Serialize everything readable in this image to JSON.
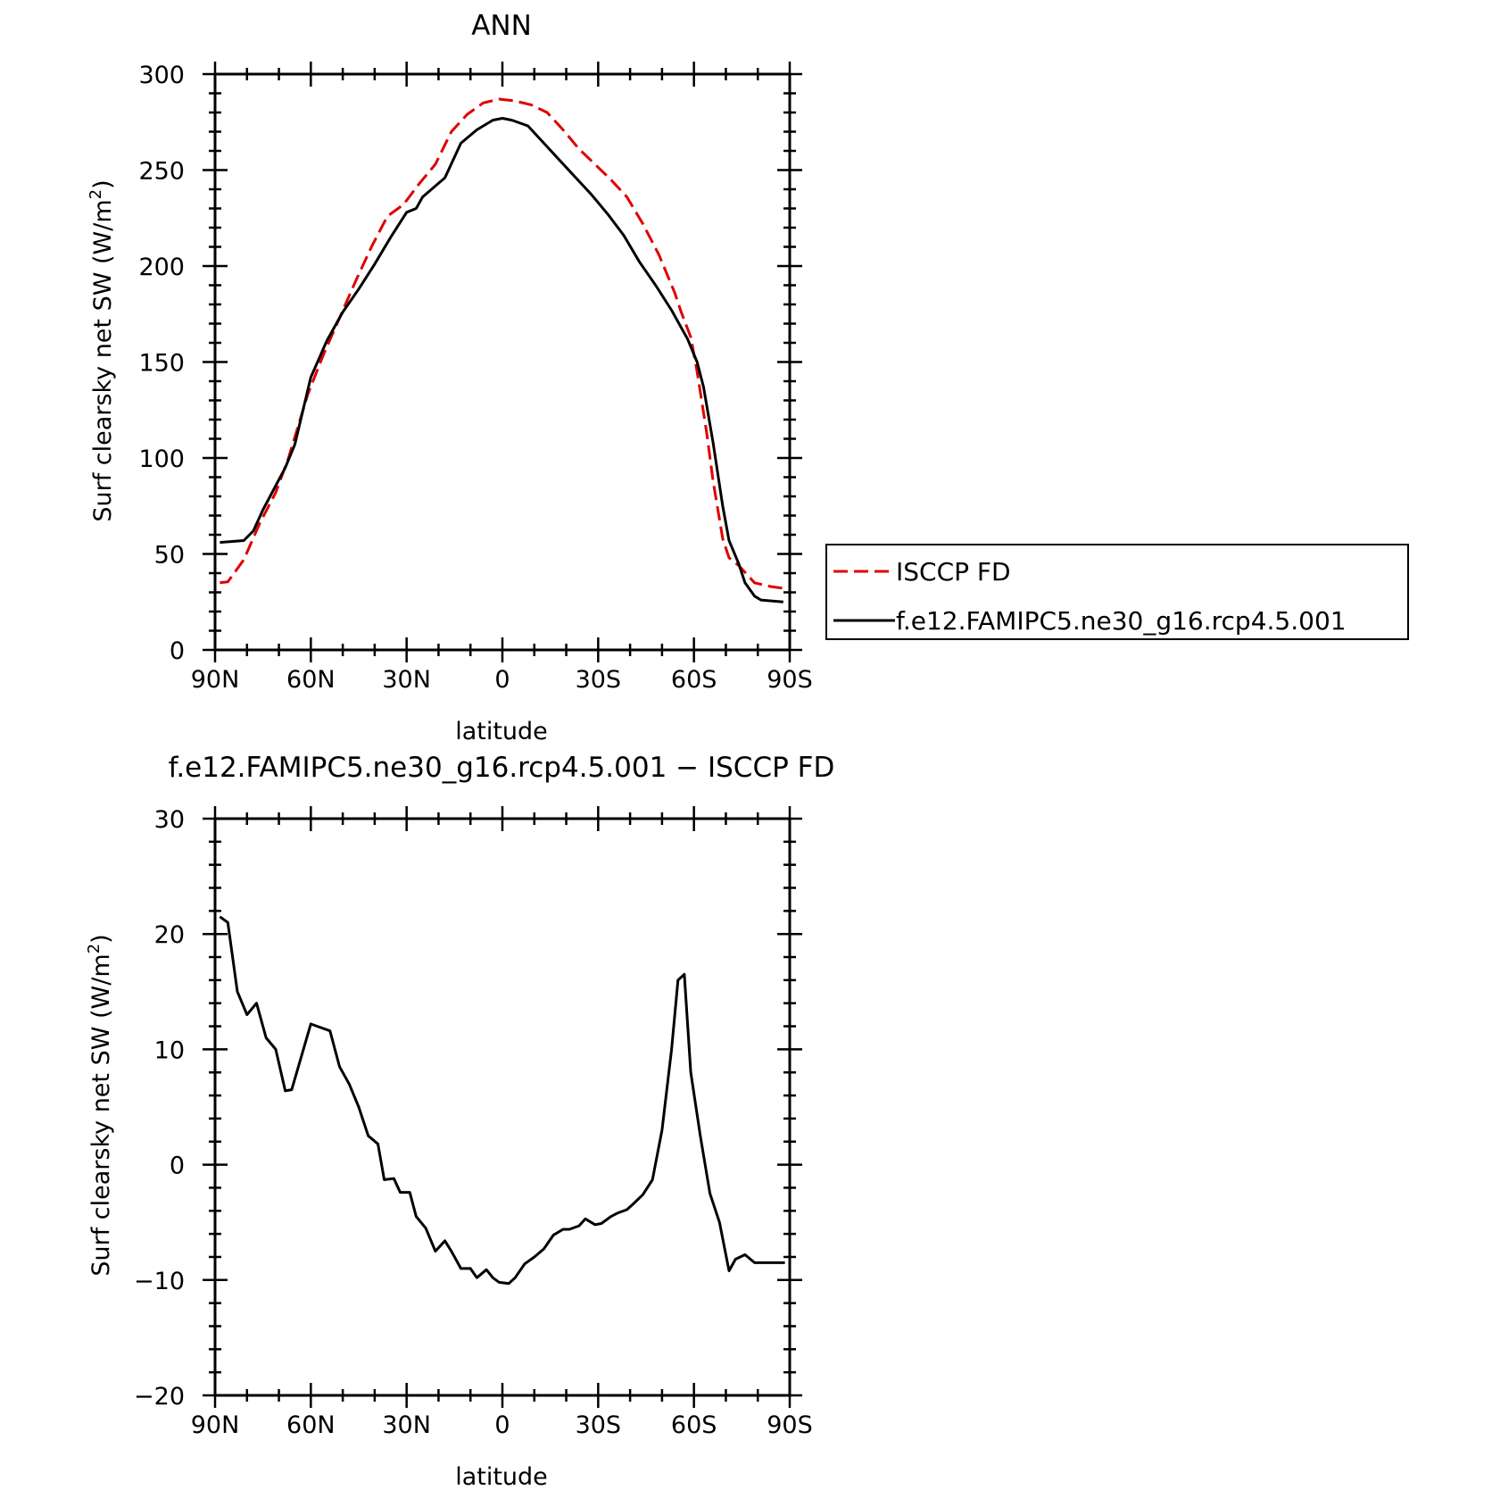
{
  "chart_data": [
    {
      "type": "line",
      "title": "ANN",
      "xlabel": "latitude",
      "ylabel": "Surf clearsky net SW",
      "ylabel_unit_prefix": "(W/m",
      "ylabel_unit_sup": "2",
      "ylabel_unit_suffix": ")",
      "xlim": [
        90,
        -90
      ],
      "ylim": [
        0,
        300
      ],
      "xticks": [
        {
          "value": 90,
          "label": "90N"
        },
        {
          "value": 60,
          "label": "60N"
        },
        {
          "value": 30,
          "label": "30N"
        },
        {
          "value": 0,
          "label": "0"
        },
        {
          "value": -30,
          "label": "30S"
        },
        {
          "value": -60,
          "label": "60S"
        },
        {
          "value": -90,
          "label": "90S"
        }
      ],
      "yticks": [
        0,
        50,
        100,
        150,
        200,
        250,
        300
      ],
      "grid": false,
      "legend": "right",
      "series": [
        {
          "name": "ISCCP FD",
          "color": "#e00000",
          "style": "dashed",
          "x": [
            88.5,
            86,
            81,
            76,
            71,
            67,
            61,
            56,
            51,
            46,
            41,
            36,
            31,
            26,
            21,
            16,
            11,
            6,
            1,
            -4,
            -9,
            -14,
            -19,
            -24,
            -29,
            -34,
            -39,
            -44,
            -49,
            -54,
            -56,
            -59,
            -61,
            -64,
            -66,
            -69,
            -71,
            -74,
            -79,
            -84,
            -88.5
          ],
          "y": [
            35,
            35.5,
            47,
            66,
            82,
            100,
            133,
            154,
            173,
            192,
            210,
            226,
            232,
            243,
            253,
            270,
            279,
            285,
            287,
            286,
            284,
            280,
            271,
            261,
            253,
            245,
            236,
            222,
            206,
            186,
            176,
            163,
            145,
            113,
            88,
            58,
            48,
            44,
            35,
            33,
            32
          ]
        },
        {
          "name": "f.e12.FAMIPC5.ne30_g16.rcp4.5.001",
          "color": "#000000",
          "style": "solid",
          "x": [
            88.5,
            81,
            78,
            75,
            68,
            65,
            60,
            55,
            50,
            45,
            40,
            35,
            30,
            27,
            25,
            18,
            13,
            8,
            3,
            0,
            -3,
            -8,
            -13,
            -18,
            -23,
            -28,
            -33,
            -38,
            -43,
            -48,
            -53,
            -58,
            -61,
            -63,
            -66,
            -69,
            -71,
            -74,
            -76,
            -79,
            -81,
            -88
          ],
          "y": [
            56,
            57,
            62,
            73,
            95,
            107,
            142,
            161,
            176,
            188,
            201,
            215,
            228,
            230,
            236,
            246,
            264,
            271,
            276,
            277,
            276,
            273,
            264,
            255,
            246,
            237,
            227,
            216,
            202,
            190,
            177,
            162,
            150,
            137,
            108,
            75,
            57,
            45,
            35,
            28,
            26,
            25
          ]
        }
      ]
    },
    {
      "type": "line",
      "title": "f.e12.FAMIPC5.ne30_g16.rcp4.5.001 − ISCCP FD",
      "xlabel": "latitude",
      "ylabel": "Surf clearsky net SW",
      "ylabel_unit_prefix": "(W/m",
      "ylabel_unit_sup": "2",
      "ylabel_unit_suffix": ")",
      "xlim": [
        90,
        -90
      ],
      "ylim": [
        -20,
        30
      ],
      "xticks": [
        {
          "value": 90,
          "label": "90N"
        },
        {
          "value": 60,
          "label": "60N"
        },
        {
          "value": 30,
          "label": "30N"
        },
        {
          "value": 0,
          "label": "0"
        },
        {
          "value": -30,
          "label": "30S"
        },
        {
          "value": -60,
          "label": "60S"
        },
        {
          "value": -90,
          "label": "90S"
        }
      ],
      "yticks": [
        {
          "value": -20,
          "label": "−20"
        },
        {
          "value": -10,
          "label": "−10"
        },
        {
          "value": 0,
          "label": "0"
        },
        {
          "value": 10,
          "label": "10"
        },
        {
          "value": 20,
          "label": "20"
        },
        {
          "value": 30,
          "label": "30"
        }
      ],
      "grid": false,
      "series": [
        {
          "color": "#000000",
          "style": "solid",
          "x": [
            88.5,
            86,
            83,
            80,
            77,
            74,
            71,
            68,
            66,
            60,
            57,
            54,
            51,
            48,
            45,
            42,
            39,
            37,
            34,
            32,
            29,
            27,
            24,
            21,
            18,
            16,
            13,
            10,
            8,
            5,
            3,
            1,
            -2,
            -4,
            -7,
            -10,
            -13,
            -16,
            -19,
            -21,
            -24,
            -26,
            -29,
            -31,
            -34,
            -36,
            -39,
            -41,
            -44,
            -47,
            -50,
            -53,
            -55,
            -57,
            -59,
            -62,
            -65,
            -68,
            -71,
            -73,
            -76,
            -79,
            -81,
            -84,
            -86,
            -88.5
          ],
          "y": [
            21.5,
            21,
            15,
            13,
            14,
            11,
            10,
            6.4,
            6.5,
            12.2,
            11.9,
            11.6,
            8.5,
            7,
            5,
            2.5,
            1.8,
            -1.3,
            -1.2,
            -2.4,
            -2.4,
            -4.5,
            -5.5,
            -7.5,
            -6.6,
            -7.5,
            -9,
            -9,
            -9.8,
            -9.1,
            -9.8,
            -10.2,
            -10.3,
            -9.8,
            -8.6,
            -8,
            -7.3,
            -6.1,
            -5.6,
            -5.6,
            -5.3,
            -4.7,
            -5.2,
            -5.1,
            -4.5,
            -4.2,
            -3.9,
            -3.4,
            -2.6,
            -1.3,
            3,
            10,
            16,
            16.5,
            8,
            2.5,
            -2.5,
            -5,
            -9.2,
            -8.2,
            -7.8,
            -8.5,
            -8.5,
            -8.5,
            -8.5,
            -8.5
          ]
        }
      ]
    }
  ]
}
